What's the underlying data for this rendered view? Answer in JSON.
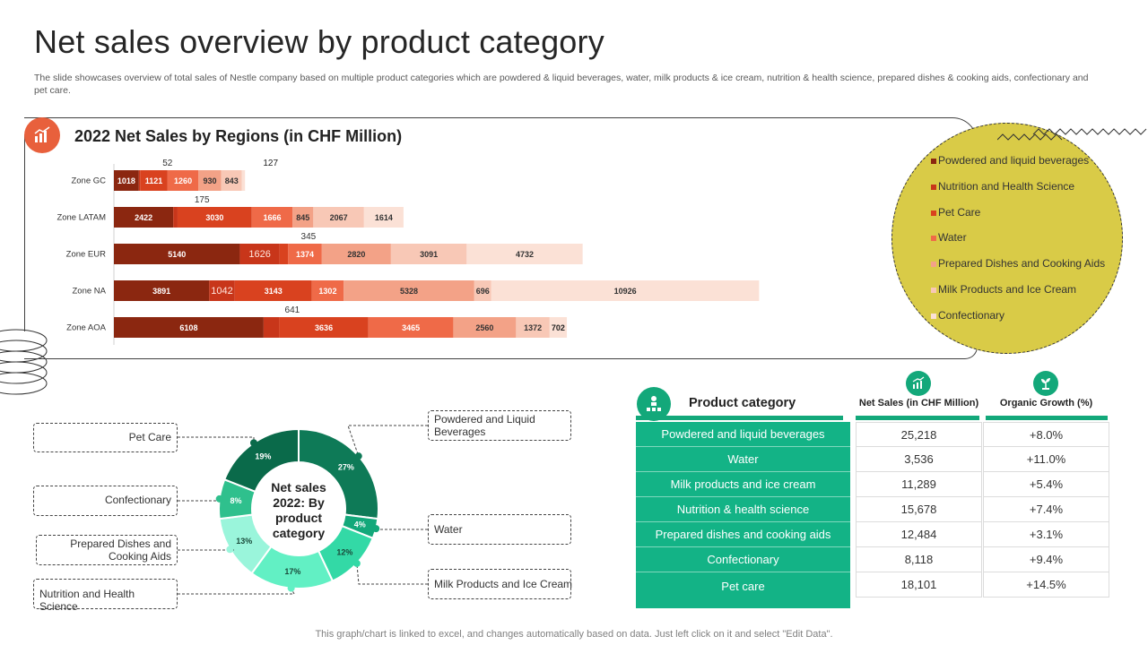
{
  "title": "Net sales overview by product category",
  "subtitle": "The slide showcases overview of total sales of Nestle company based on multiple product categories which are powdered & liquid beverages, water, milk products & ice cream, nutrition & health science, prepared dishes & cooking aids, confectionary and pet care.",
  "footer": "This graph/chart is linked to excel,  and changes automatically based on data. Just left click on it and select \"Edit Data\".",
  "colors": {
    "accent_orange": "#e8603c",
    "legend_bg": "#d9cb47",
    "table_green": "#13b386"
  },
  "icons": {
    "chart": "bar-chart-icon",
    "product": "hierarchy-icon",
    "sales": "growth-chart-icon",
    "growth": "plant-growth-icon"
  },
  "chart_data": [
    {
      "type": "bar",
      "orientation": "horizontal",
      "stacked": true,
      "title": "2022 Net Sales by Regions (in CHF Million)",
      "categories": [
        "Zone GC",
        "Zone LATAM",
        "Zone EUR",
        "Zone NA",
        "Zone AOA"
      ],
      "series": [
        {
          "name": "Powdered and liquid beverages",
          "color": "#8b2710",
          "values": [
            1018,
            2422,
            5140,
            3891,
            6108
          ]
        },
        {
          "name": "Nutrition and Health Science",
          "color": "#c8361a",
          "values": [
            52,
            175,
            1626,
            1042,
            641
          ]
        },
        {
          "name": "Pet Care",
          "color": "#d9421f",
          "values": [
            1121,
            3030,
            345,
            3143,
            3636
          ]
        },
        {
          "name": "Water",
          "color": "#ef6a48",
          "values": [
            1260,
            1666,
            1374,
            1302,
            3465
          ]
        },
        {
          "name": "Prepared Dishes and Cooking Aids",
          "color": "#f3a287",
          "values": [
            930,
            845,
            2820,
            5328,
            2560
          ]
        },
        {
          "name": "Milk Products and Ice Cream",
          "color": "#f8c8b6",
          "values": [
            843,
            2067,
            3091,
            696,
            1372
          ]
        },
        {
          "name": "Confectionary",
          "color": "#fbe1d6",
          "values": [
            127,
            1614,
            4732,
            10926,
            702
          ]
        }
      ],
      "legend_position": "right"
    },
    {
      "type": "pie",
      "variant": "donut",
      "title": "Net sales 2022: By product category",
      "labels": [
        "Powdered and Liquid Beverages",
        "Water",
        "Milk Products and Ice Cream",
        "Nutrition and Health Science",
        "Prepared Dishes and Cooking Aids",
        "Confectionary",
        "Pet Care"
      ],
      "values": [
        27,
        4,
        12,
        17,
        13,
        8,
        19
      ],
      "colors": [
        "#0e7a57",
        "#13a87a",
        "#33d9a6",
        "#62f0c4",
        "#9af5db",
        "#2fc08d",
        "#0a6a4a"
      ]
    },
    {
      "type": "table",
      "title": "Product category",
      "columns": [
        "Product category",
        "Net Sales (in CHF Million)",
        "Organic Growth (%)"
      ],
      "rows": [
        [
          "Powdered and liquid beverages",
          "25,218",
          "+8.0%"
        ],
        [
          "Water",
          "3,536",
          "+11.0%"
        ],
        [
          "Milk products and ice cream",
          "11,289",
          "+5.4%"
        ],
        [
          "Nutrition & health science",
          "15,678",
          "+7.4%"
        ],
        [
          "Prepared dishes and cooking aids",
          "12,484",
          "+3.1%"
        ],
        [
          "Confectionary",
          "8,118",
          "+9.4%"
        ],
        [
          "Pet care",
          "18,101",
          "+14.5%"
        ]
      ]
    }
  ]
}
